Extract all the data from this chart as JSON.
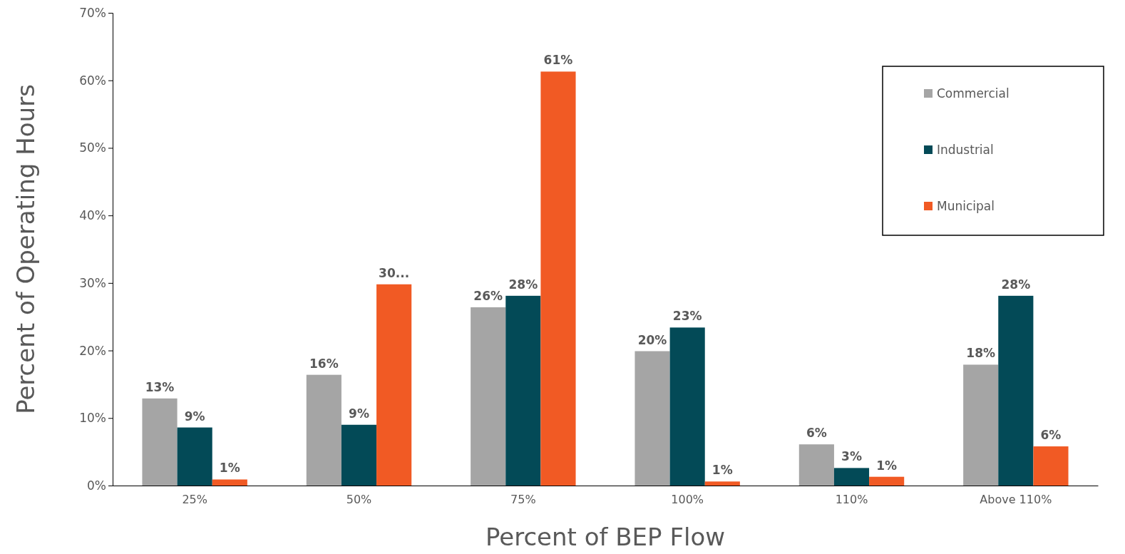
{
  "chart_data": {
    "type": "bar",
    "xlabel": "Percent of BEP Flow",
    "ylabel": "Percent of Operating Hours",
    "categories": [
      "25%",
      "50%",
      "75%",
      "100%",
      "110%",
      "Above 110%"
    ],
    "series": [
      {
        "name": "Commercial",
        "color": "#a5a5a5",
        "values": [
          12.9,
          16.4,
          26.4,
          19.9,
          6.1,
          17.9
        ],
        "value_labels": [
          "13%",
          "16%",
          "26%",
          "20%",
          "6%",
          "18%"
        ]
      },
      {
        "name": "Industrial",
        "color": "#034a57",
        "values": [
          8.6,
          9.0,
          28.1,
          23.4,
          2.6,
          28.1
        ],
        "value_labels": [
          "9%",
          "9%",
          "28%",
          "23%",
          "3%",
          "28%"
        ]
      },
      {
        "name": "Municipal",
        "color": "#f15a24",
        "values": [
          0.9,
          29.8,
          61.3,
          0.6,
          1.3,
          5.8
        ],
        "value_labels": [
          "1%",
          "30...",
          "61%",
          "1%",
          "1%",
          "6%"
        ]
      }
    ],
    "ylim": [
      0,
      70
    ],
    "yticks": [
      {
        "value": 0,
        "label": "0%"
      },
      {
        "value": 10,
        "label": "10%"
      },
      {
        "value": 20,
        "label": "20%"
      },
      {
        "value": 30,
        "label": "30%"
      },
      {
        "value": 40,
        "label": "40%"
      },
      {
        "value": 50,
        "label": "50%"
      },
      {
        "value": 60,
        "label": "60%"
      },
      {
        "value": 70,
        "label": "70%"
      }
    ],
    "legend": "top right"
  }
}
